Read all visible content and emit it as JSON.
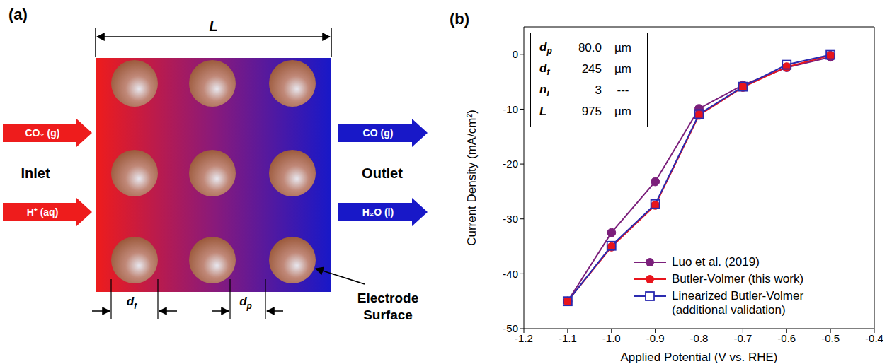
{
  "diagram": {
    "title": "(a)",
    "length_label": "L",
    "inlet": {
      "label": "Inlet",
      "streams": [
        "CO₂ (g)",
        "H⁺ (aq)"
      ]
    },
    "outlet": {
      "label": "Outlet",
      "streams": [
        "CO (g)",
        "H₂O (l)"
      ]
    },
    "fiber_label": "df",
    "particle_label": "dp",
    "electrode_label": "Electrode Surface"
  },
  "chart_data": {
    "type": "line",
    "title": "(b)",
    "x_label": "Applied Potential (V vs. RHE)",
    "y_label": "Current Density (mA/cm²)",
    "x": [
      -1.1,
      -1.0,
      -0.9,
      -0.8,
      -0.7,
      -0.6,
      -0.5
    ],
    "series": [
      {
        "name": "Luo et al. (2019)",
        "color": "#7b1f7b",
        "marker": "circle",
        "line_style": "solid",
        "values": [
          -45,
          -32.5,
          -23.2,
          -9.9,
          -5.6,
          -2.4,
          -0.5
        ]
      },
      {
        "name": "Butler-Volmer (this work)",
        "color": "#e8141c",
        "marker": "circle",
        "line_style": "solid",
        "values": [
          -45,
          -35.1,
          -27.5,
          -11.1,
          -6.0,
          -2.3,
          -0.2
        ]
      },
      {
        "name": "Linearized Butler-Volmer (additional validation)",
        "color": "#2b2bb0",
        "marker": "open_square",
        "line_style": "solid",
        "values": [
          -45,
          -34.9,
          -27.3,
          -10.9,
          -5.9,
          -1.9,
          -0.1
        ]
      }
    ],
    "xlim": [
      -1.2,
      -0.4
    ],
    "xticks": [
      -1.2,
      -1.1,
      {
        "value": -1,
        "label": "-1.0"
      },
      -0.9,
      -0.8,
      -0.7,
      -0.6,
      -0.5,
      -0.4
    ],
    "ylim": [
      -50,
      5
    ],
    "yticks": [
      -50,
      -40,
      -30,
      -20,
      -10,
      0
    ],
    "legend": "lower right",
    "inset_table": {
      "rows": [
        [
          "dp",
          "80.0",
          "µm"
        ],
        [
          "df",
          "245",
          "µm"
        ],
        [
          "ni",
          "3",
          "---"
        ],
        [
          "L",
          "975",
          "µm"
        ]
      ]
    }
  }
}
